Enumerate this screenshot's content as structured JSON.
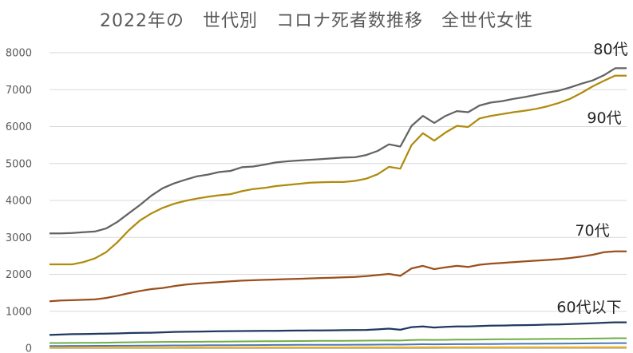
{
  "chart_data": {
    "type": "line",
    "title": "2022年の　世代別　コロナ死者数推移　全世代女性",
    "xlabel": "",
    "ylabel": "",
    "ylim": [
      0,
      8000
    ],
    "y_ticks": [
      0,
      1000,
      2000,
      3000,
      4000,
      5000,
      6000,
      7000,
      8000
    ],
    "grid": "horizontal",
    "legend": "none",
    "x": [
      1,
      2,
      3,
      4,
      5,
      6,
      7,
      8,
      9,
      10,
      11,
      12,
      13,
      14,
      15,
      16,
      17,
      18,
      19,
      20,
      21,
      22,
      23,
      24,
      25,
      26,
      27,
      28,
      29,
      30,
      31,
      32,
      33,
      34,
      35,
      36,
      37,
      38,
      39,
      40,
      41,
      42,
      43,
      44,
      45,
      46,
      47,
      48,
      49,
      50,
      51,
      52
    ],
    "series": [
      {
        "name": "80代",
        "color": "#636363",
        "values": [
          3110,
          3110,
          3120,
          3140,
          3160,
          3240,
          3420,
          3650,
          3880,
          4130,
          4330,
          4460,
          4560,
          4650,
          4700,
          4770,
          4800,
          4900,
          4920,
          4970,
          5030,
          5060,
          5080,
          5100,
          5120,
          5140,
          5160,
          5170,
          5230,
          5340,
          5520,
          5460,
          6020,
          6290,
          6100,
          6290,
          6420,
          6390,
          6570,
          6650,
          6690,
          6750,
          6800,
          6860,
          6920,
          6970,
          7060,
          7160,
          7250,
          7390,
          7580,
          7580
        ]
      },
      {
        "name": "90代",
        "color": "#b08b0e",
        "values": [
          2270,
          2270,
          2270,
          2330,
          2430,
          2600,
          2870,
          3190,
          3460,
          3650,
          3800,
          3910,
          3990,
          4050,
          4100,
          4140,
          4170,
          4250,
          4310,
          4340,
          4390,
          4420,
          4450,
          4480,
          4490,
          4500,
          4500,
          4530,
          4590,
          4710,
          4910,
          4860,
          5500,
          5820,
          5620,
          5840,
          6020,
          5990,
          6220,
          6290,
          6340,
          6390,
          6430,
          6480,
          6550,
          6640,
          6750,
          6910,
          7090,
          7240,
          7380,
          7380
        ]
      },
      {
        "name": "70代",
        "color": "#9a4f1c",
        "values": [
          1270,
          1290,
          1300,
          1310,
          1320,
          1360,
          1420,
          1490,
          1550,
          1600,
          1630,
          1680,
          1720,
          1750,
          1770,
          1790,
          1810,
          1830,
          1840,
          1850,
          1860,
          1870,
          1880,
          1890,
          1900,
          1910,
          1920,
          1930,
          1950,
          1980,
          2010,
          1960,
          2160,
          2230,
          2140,
          2190,
          2230,
          2200,
          2260,
          2290,
          2310,
          2330,
          2350,
          2370,
          2390,
          2410,
          2440,
          2480,
          2530,
          2600,
          2620,
          2620
        ]
      },
      {
        "name": "60代以下",
        "color": "#1f3a5f",
        "values": [
          360,
          370,
          380,
          385,
          390,
          395,
          400,
          410,
          415,
          420,
          430,
          440,
          445,
          450,
          455,
          460,
          462,
          465,
          468,
          470,
          472,
          475,
          478,
          480,
          482,
          485,
          488,
          490,
          495,
          510,
          530,
          500,
          570,
          590,
          560,
          580,
          590,
          590,
          600,
          610,
          615,
          620,
          625,
          630,
          640,
          645,
          655,
          665,
          675,
          690,
          700,
          700
        ]
      },
      {
        "name": "",
        "color": "#70ad47",
        "values": [
          140,
          140,
          142,
          145,
          148,
          150,
          155,
          160,
          165,
          168,
          170,
          172,
          174,
          176,
          178,
          180,
          182,
          184,
          186,
          188,
          190,
          192,
          194,
          196,
          198,
          200,
          202,
          204,
          206,
          208,
          212,
          208,
          222,
          228,
          224,
          228,
          232,
          232,
          236,
          240,
          242,
          244,
          246,
          248,
          250,
          252,
          255,
          258,
          262,
          266,
          270,
          270
        ]
      },
      {
        "name": "",
        "color": "#4a7ab5",
        "values": [
          60,
          60,
          62,
          63,
          64,
          65,
          66,
          68,
          70,
          72,
          74,
          75,
          76,
          78,
          80,
          82,
          83,
          84,
          85,
          86,
          88,
          89,
          90,
          91,
          92,
          93,
          94,
          95,
          96,
          98,
          100,
          98,
          104,
          108,
          105,
          108,
          110,
          110,
          112,
          114,
          116,
          118,
          120,
          122,
          124,
          126,
          128,
          130,
          132,
          135,
          138,
          138
        ]
      },
      {
        "name": "",
        "color": "#f2b01e",
        "values": [
          15,
          15,
          15,
          16,
          16,
          16,
          17,
          17,
          17,
          18,
          18,
          18,
          19,
          19,
          19,
          20,
          20,
          20,
          20,
          21,
          21,
          21,
          21,
          22,
          22,
          22,
          22,
          23,
          23,
          23,
          24,
          24,
          24,
          25,
          25,
          25,
          26,
          26,
          26,
          27,
          27,
          27,
          28,
          28,
          28,
          29,
          29,
          29,
          30,
          30,
          30,
          30
        ]
      },
      {
        "name": "",
        "color": "#a5a5a5",
        "values": [
          5,
          5,
          5,
          5,
          5,
          5,
          5,
          5,
          5,
          5,
          5,
          5,
          5,
          6,
          6,
          6,
          6,
          6,
          6,
          6,
          6,
          6,
          6,
          6,
          6,
          7,
          7,
          7,
          7,
          7,
          7,
          7,
          7,
          7,
          7,
          8,
          8,
          8,
          8,
          8,
          8,
          8,
          8,
          8,
          8,
          8,
          9,
          9,
          9,
          9,
          9,
          9
        ]
      }
    ]
  }
}
